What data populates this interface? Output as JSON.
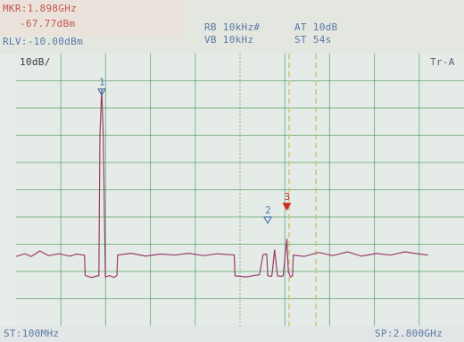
{
  "marker": {
    "freq": "MKR:1.898GHz",
    "level": "-67.77dBm"
  },
  "reference_level": "RLV:-10.00dBm",
  "settings": {
    "rbw": "RB 10kHz#",
    "vbw": "VB 10kHz",
    "atten": "AT 10dB",
    "sweep": "ST 54s"
  },
  "scale": "10dB/",
  "trace_mode": "Tr-A",
  "footer": {
    "start": "ST:100MHz",
    "span": "SP:2.800GHz"
  },
  "markers": [
    {
      "label": "1"
    },
    {
      "label": "2"
    },
    {
      "label": "3"
    }
  ],
  "colors": {
    "grid": "#2f8a3d",
    "trace": "#9a3b6a",
    "marker_open": "#4a78b0",
    "marker_active": "#d02a2a",
    "boundary": "#d2c079"
  },
  "chart_data": {
    "type": "line",
    "xlim": [
      100,
      2900
    ],
    "y_divisions": 10,
    "y_per_division_db": 10,
    "points": [
      [
        100,
        74.5
      ],
      [
        124,
        73.5
      ],
      [
        142,
        74.5
      ],
      [
        166,
        72.5
      ],
      [
        190,
        74.2
      ],
      [
        220,
        73.5
      ],
      [
        250,
        74.4
      ],
      [
        268,
        73.6
      ],
      [
        286,
        74
      ],
      [
        290,
        74
      ],
      [
        292,
        81.5
      ],
      [
        310,
        82.2
      ],
      [
        326,
        81.6
      ],
      [
        330,
        81.6
      ],
      [
        333,
        30
      ],
      [
        338,
        13
      ],
      [
        342,
        30
      ],
      [
        348,
        82
      ],
      [
        360,
        81.5
      ],
      [
        372,
        82.2
      ],
      [
        376,
        81.8
      ],
      [
        380,
        81.5
      ],
      [
        382,
        74
      ],
      [
        420,
        73.3
      ],
      [
        460,
        74.4
      ],
      [
        500,
        73.6
      ],
      [
        540,
        74
      ],
      [
        580,
        73.3
      ],
      [
        620,
        74.2
      ],
      [
        660,
        73.5
      ],
      [
        706,
        74
      ],
      [
        708,
        81.6
      ],
      [
        740,
        82
      ],
      [
        764,
        81.4
      ],
      [
        776,
        81.2
      ],
      [
        786,
        73.8
      ],
      [
        796,
        73.6
      ],
      [
        799,
        81.6
      ],
      [
        810,
        81.8
      ],
      [
        812,
        80
      ],
      [
        818,
        72
      ],
      [
        826,
        81.6
      ],
      [
        836,
        81.8
      ],
      [
        842,
        81.6
      ],
      [
        846,
        76
      ],
      [
        852,
        68
      ],
      [
        856,
        80
      ],
      [
        862,
        82
      ],
      [
        868,
        81.6
      ],
      [
        870,
        74
      ],
      [
        900,
        74.5
      ],
      [
        940,
        73
      ],
      [
        980,
        74.2
      ],
      [
        1020,
        72.8
      ],
      [
        1060,
        74.4
      ],
      [
        1100,
        73.4
      ],
      [
        1140,
        74
      ],
      [
        1180,
        72.8
      ],
      [
        1220,
        73.6
      ],
      [
        1244,
        74
      ]
    ],
    "point_units": "chart units: x 0-1244 across plot width, y 0-100 from top of plot"
  }
}
